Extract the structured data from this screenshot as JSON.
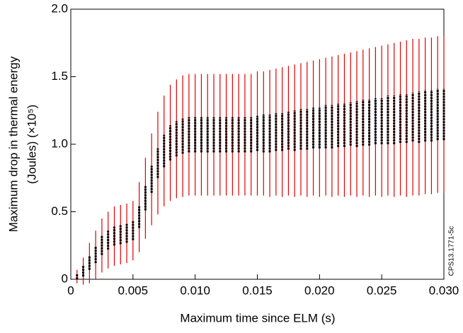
{
  "chart_data": {
    "type": "errorbar",
    "ylabel": [
      "Maximum drop in thermal energy",
      "(Joules) (×10⁵)"
    ],
    "xlabel": "Maximum time since ELM (s)",
    "annotation": "CPS13.1771-5c",
    "xlim": [
      0,
      0.03
    ],
    "ylim": [
      0,
      2.0
    ],
    "xticks": [
      0,
      0.005,
      {
        "value": 0.01,
        "label": "0.010"
      },
      0.015,
      {
        "value": 0.02,
        "label": "0.020"
      },
      0.025,
      {
        "value": 0.03,
        "label": "0.030"
      }
    ],
    "yticks": [
      0,
      0.5,
      {
        "value": 1.0,
        "label": "1.0"
      },
      1.5,
      {
        "value": 2.0,
        "label": "2.0"
      }
    ],
    "error_color": "#e00000",
    "inner_color": "#000000",
    "x": [
      0.0005,
      0.001,
      0.0015,
      0.002,
      0.0025,
      0.003,
      0.0035,
      0.004,
      0.0045,
      0.005,
      0.0055,
      0.006,
      0.0065,
      0.007,
      0.0075,
      0.008,
      0.0085,
      0.009,
      0.0095,
      0.01,
      0.0105,
      0.011,
      0.0115,
      0.012,
      0.0125,
      0.013,
      0.0135,
      0.014,
      0.0145,
      0.015,
      0.0155,
      0.016,
      0.0165,
      0.017,
      0.0175,
      0.018,
      0.0185,
      0.019,
      0.0195,
      0.02,
      0.0205,
      0.021,
      0.0215,
      0.022,
      0.0225,
      0.023,
      0.0235,
      0.024,
      0.0245,
      0.025,
      0.0255,
      0.026,
      0.0265,
      0.027,
      0.0275,
      0.028,
      0.0285,
      0.029,
      0.0295,
      0.03
    ],
    "values": [
      0.02,
      0.06,
      0.12,
      0.18,
      0.25,
      0.29,
      0.32,
      0.33,
      0.34,
      0.36,
      0.46,
      0.6,
      0.74,
      0.86,
      0.95,
      1.01,
      1.04,
      1.06,
      1.07,
      1.07,
      1.07,
      1.07,
      1.07,
      1.07,
      1.07,
      1.07,
      1.07,
      1.07,
      1.07,
      1.08,
      1.08,
      1.08,
      1.09,
      1.09,
      1.1,
      1.1,
      1.11,
      1.11,
      1.12,
      1.12,
      1.13,
      1.13,
      1.14,
      1.14,
      1.15,
      1.15,
      1.16,
      1.16,
      1.17,
      1.17,
      1.18,
      1.18,
      1.19,
      1.19,
      1.2,
      1.2,
      1.21,
      1.21,
      1.22,
      1.22
    ],
    "error": [
      0.05,
      0.1,
      0.15,
      0.18,
      0.2,
      0.21,
      0.22,
      0.22,
      0.22,
      0.22,
      0.26,
      0.3,
      0.34,
      0.38,
      0.41,
      0.43,
      0.44,
      0.45,
      0.45,
      0.45,
      0.45,
      0.45,
      0.45,
      0.45,
      0.45,
      0.45,
      0.45,
      0.45,
      0.45,
      0.46,
      0.46,
      0.47,
      0.47,
      0.48,
      0.48,
      0.49,
      0.49,
      0.5,
      0.5,
      0.51,
      0.51,
      0.52,
      0.52,
      0.53,
      0.53,
      0.54,
      0.54,
      0.55,
      0.55,
      0.56,
      0.56,
      0.57,
      0.57,
      0.58,
      0.58,
      0.58,
      0.58,
      0.58,
      0.58,
      0.58
    ],
    "error_inner": [
      0.02,
      0.04,
      0.05,
      0.06,
      0.07,
      0.07,
      0.07,
      0.07,
      0.07,
      0.07,
      0.08,
      0.09,
      0.1,
      0.11,
      0.12,
      0.13,
      0.13,
      0.13,
      0.13,
      0.13,
      0.13,
      0.13,
      0.13,
      0.13,
      0.13,
      0.13,
      0.13,
      0.13,
      0.13,
      0.13,
      0.14,
      0.14,
      0.14,
      0.14,
      0.14,
      0.15,
      0.15,
      0.15,
      0.15,
      0.15,
      0.16,
      0.16,
      0.16,
      0.16,
      0.16,
      0.17,
      0.17,
      0.17,
      0.17,
      0.17,
      0.18,
      0.18,
      0.18,
      0.18,
      0.18,
      0.19,
      0.19,
      0.19,
      0.19,
      0.19
    ]
  }
}
